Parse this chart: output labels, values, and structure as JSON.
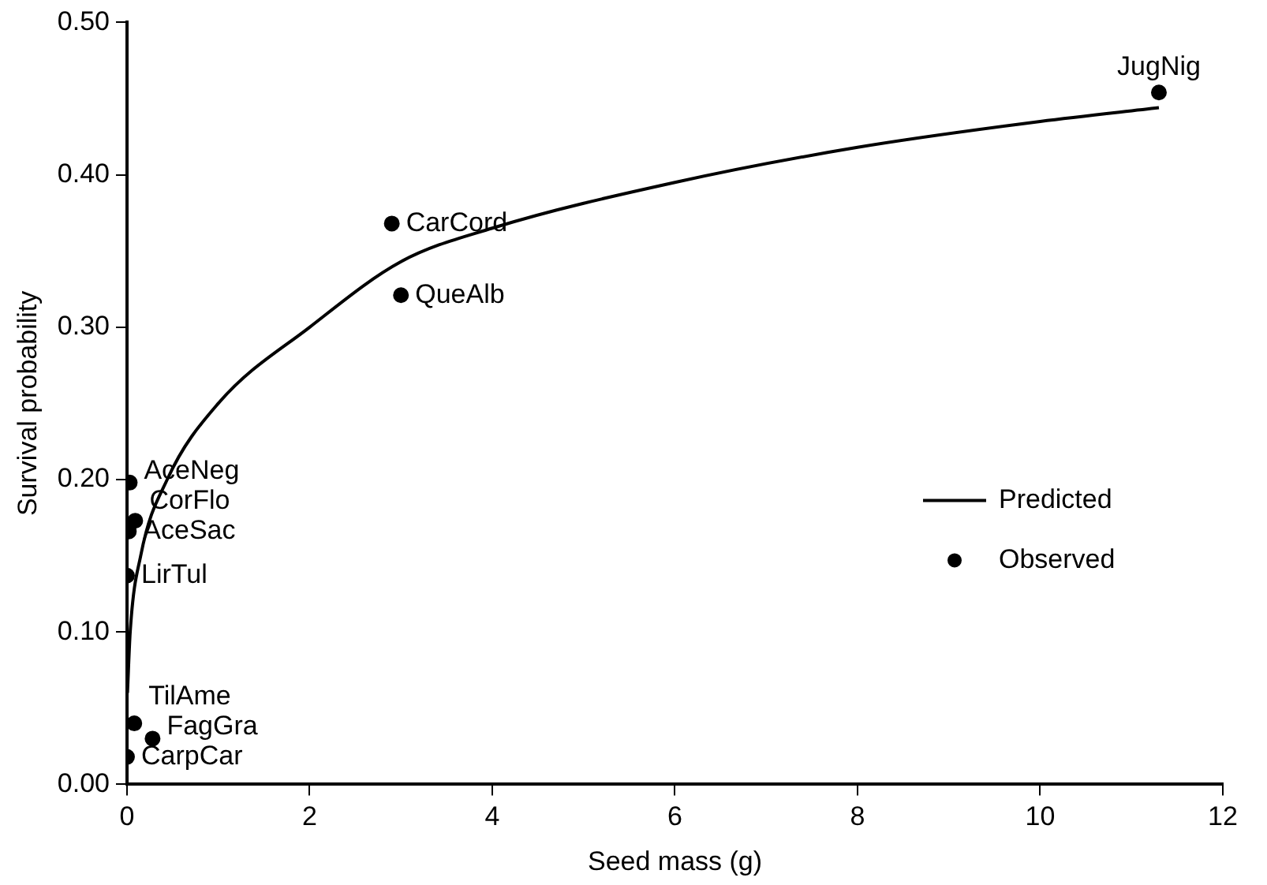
{
  "chart_data": {
    "type": "scatter",
    "xlabel": "Seed mass (g)",
    "ylabel": "Survival probability",
    "series": [
      {
        "name": "Predicted",
        "type": "line",
        "color": "#000000",
        "marker": "none",
        "line_style": "solid",
        "x": [
          0.005,
          0.035,
          0.15,
          0.44,
          1,
          2,
          3,
          4,
          6,
          8,
          10,
          11.3
        ],
        "values": [
          0.06,
          0.1,
          0.15,
          0.2,
          0.25,
          0.3,
          0.343,
          0.365,
          0.395,
          0.418,
          0.435,
          0.444
        ]
      },
      {
        "name": "Observed",
        "type": "scatter",
        "color": "#000000",
        "marker": "circle",
        "x": [
          11.3,
          2.9,
          3.0,
          0.03,
          0.09,
          0.02,
          0.0,
          0.08,
          0.28,
          0.0
        ],
        "values": [
          0.454,
          0.368,
          0.321,
          0.198,
          0.173,
          0.166,
          0.137,
          0.04,
          0.03,
          0.018
        ]
      }
    ],
    "annotations": [
      {
        "text": "JugNig",
        "x": 11.3,
        "y": 0.454
      },
      {
        "text": "CarCord",
        "x": 2.9,
        "y": 0.368
      },
      {
        "text": "QueAlb",
        "x": 3.0,
        "y": 0.321
      },
      {
        "text": "AceNeg",
        "x": 0.03,
        "y": 0.198
      },
      {
        "text": "CorFlo",
        "x": 0.09,
        "y": 0.173
      },
      {
        "text": "AceSac",
        "x": 0.02,
        "y": 0.166
      },
      {
        "text": "LirTul",
        "x": 0.0,
        "y": 0.137
      },
      {
        "text": "TilAme",
        "x": 0.08,
        "y": 0.04
      },
      {
        "text": "FagGra",
        "x": 0.28,
        "y": 0.03
      },
      {
        "text": "CarpCar",
        "x": 0.0,
        "y": 0.018
      }
    ],
    "xlim": [
      0,
      12
    ],
    "xticks": [
      0,
      2,
      4,
      6,
      8,
      10,
      12
    ],
    "ylim": [
      0,
      0.5
    ],
    "yticks": [
      {
        "value": 0,
        "label": "0.00"
      },
      {
        "value": 0.1,
        "label": "0.10"
      },
      {
        "value": 0.2,
        "label": "0.20"
      },
      {
        "value": 0.3,
        "label": "0.30"
      },
      {
        "value": 0.4,
        "label": "0.40"
      },
      {
        "value": 0.5,
        "label": "0.50"
      }
    ],
    "grid": false,
    "legend": "bottom right"
  }
}
